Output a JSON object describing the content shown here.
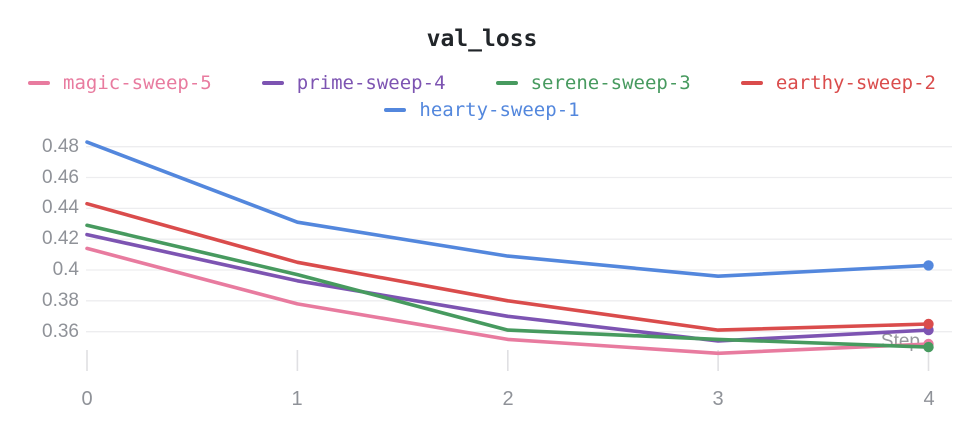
{
  "title": "val_loss",
  "axes": {
    "x_title": "Step",
    "x_tick_labels": [
      "0",
      "1",
      "2",
      "3",
      "4"
    ],
    "x_tick_values": [
      0,
      1,
      2,
      3,
      4
    ],
    "y_tick_labels": [
      "0.48",
      "0.46",
      "0.44",
      "0.42",
      "0.4",
      "0.38",
      "0.36"
    ],
    "y_tick_values": [
      0.48,
      0.46,
      0.44,
      0.42,
      0.4,
      0.38,
      0.36
    ]
  },
  "colors": {
    "gridline": "#ededef",
    "tick_mark": "#e0e0e3",
    "tick_label": "#8f9298",
    "title_text": "#212529",
    "axis_title_text": "#97999d"
  },
  "legend": [
    {
      "label": "magic-sweep-5",
      "color": "#E87B9F"
    },
    {
      "label": "prime-sweep-4",
      "color": "#7D54B2"
    },
    {
      "label": "serene-sweep-3",
      "color": "#479A5F"
    },
    {
      "label": "earthy-sweep-2",
      "color": "#DA4C4C"
    },
    {
      "label": "hearty-sweep-1",
      "color": "#5387DD"
    }
  ],
  "chart_data": {
    "type": "line",
    "title": "val_loss",
    "xlabel": "Step",
    "ylabel": "",
    "x": [
      0,
      1,
      2,
      3,
      4
    ],
    "series": [
      {
        "name": "magic-sweep-5",
        "color": "#E87B9F",
        "values": [
          0.414,
          0.378,
          0.355,
          0.346,
          0.352
        ]
      },
      {
        "name": "prime-sweep-4",
        "color": "#7D54B2",
        "values": [
          0.423,
          0.393,
          0.37,
          0.354,
          0.361
        ]
      },
      {
        "name": "serene-sweep-3",
        "color": "#479A5F",
        "values": [
          0.429,
          0.397,
          0.361,
          0.355,
          0.35
        ]
      },
      {
        "name": "earthy-sweep-2",
        "color": "#DA4C4C",
        "values": [
          0.443,
          0.405,
          0.38,
          0.361,
          0.365
        ]
      },
      {
        "name": "hearty-sweep-1",
        "color": "#5387DD",
        "values": [
          0.483,
          0.431,
          0.409,
          0.396,
          0.403
        ]
      }
    ],
    "xlim": [
      0,
      4
    ],
    "ylim": [
      0.346,
      0.49
    ],
    "grid": true,
    "legend_position": "top",
    "endpoint_dots": true
  }
}
